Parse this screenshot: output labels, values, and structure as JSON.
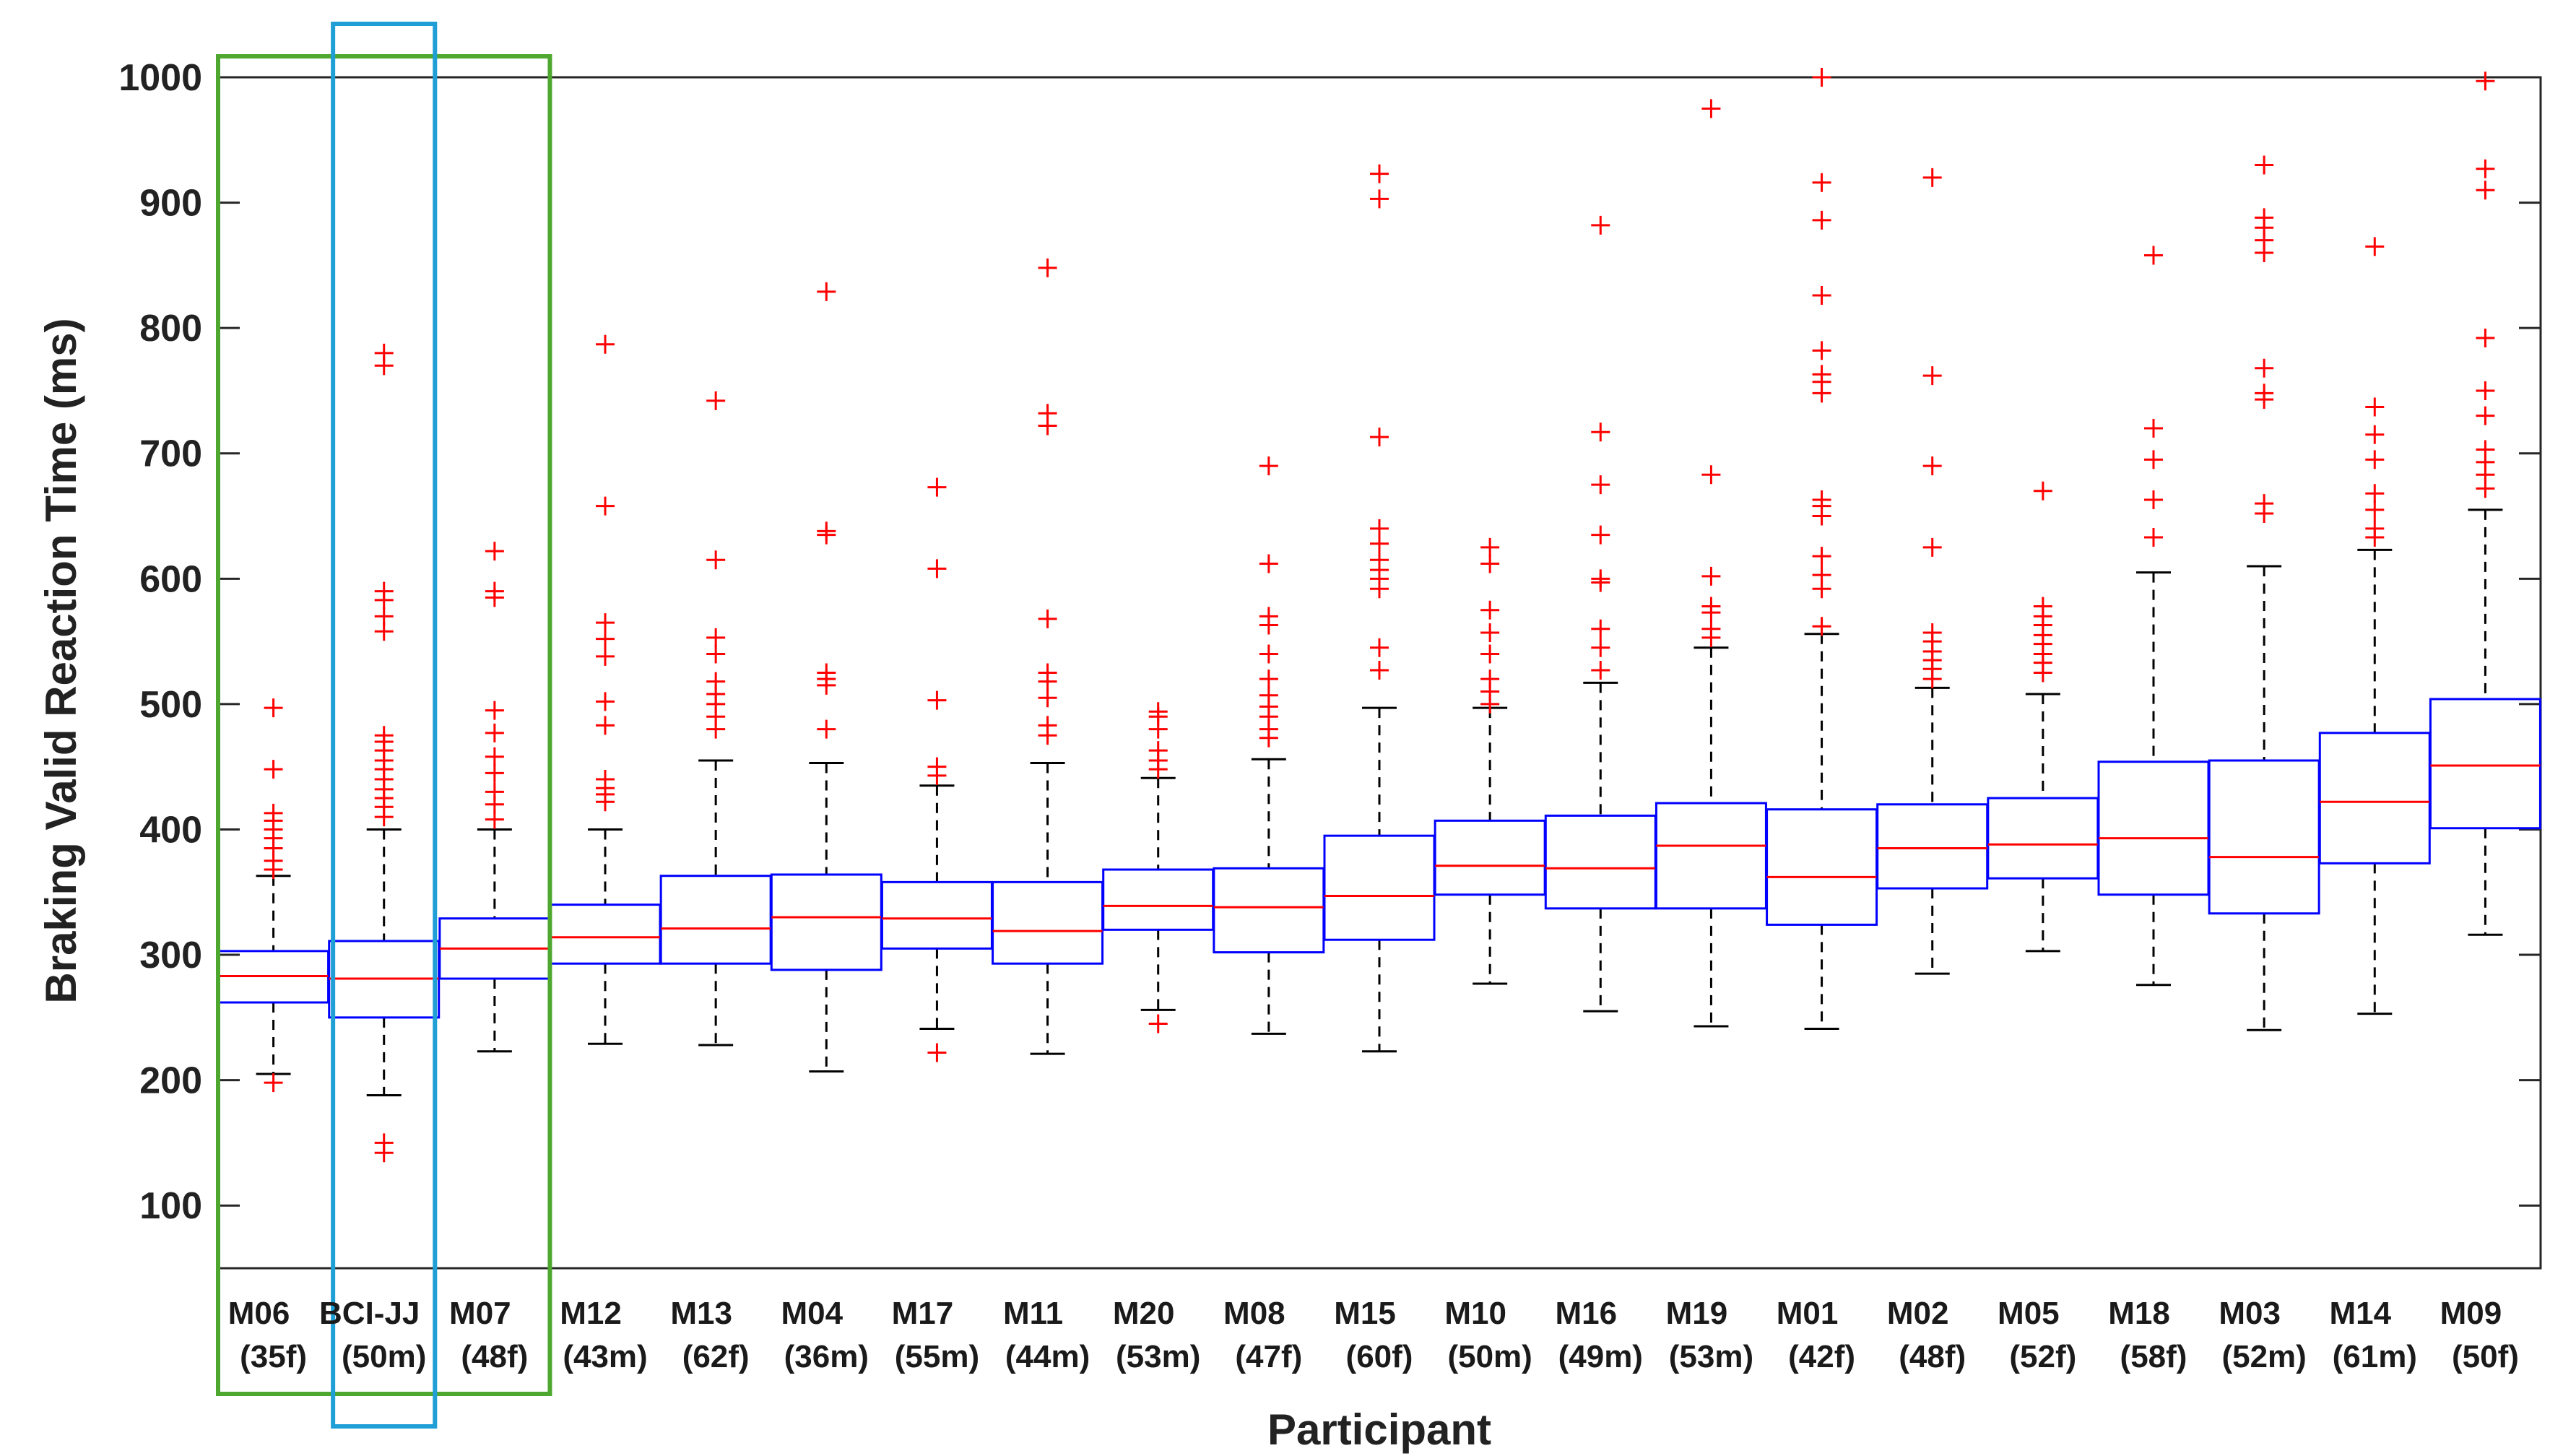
{
  "chart_data": {
    "type": "boxplot",
    "title": "",
    "xlabel": "Participant",
    "ylabel": "Braking Valid Reaction Time (ms)",
    "ylim": [
      50,
      1000
    ],
    "yticks": [
      100,
      200,
      300,
      400,
      500,
      600,
      700,
      800,
      900,
      1000
    ],
    "grid": false,
    "colors": {
      "box": "#0000ff",
      "median": "#ff0000",
      "whisker": "#000000",
      "outlier": "#ff0000",
      "highlight_green": "#4ea72e",
      "highlight_blue": "#1f9fd6"
    },
    "highlight_groups": [
      {
        "color": "green",
        "categories": [
          "M06",
          "M07"
        ]
      },
      {
        "color": "blue",
        "categories": [
          "BCI-JJ"
        ]
      }
    ],
    "categories": [
      {
        "name": "M06",
        "info": "(35f)",
        "whisker_low": 205,
        "q1": 262,
        "median": 283,
        "q3": 303,
        "whisker_high": 363,
        "outliers": [
          198,
          368,
          375,
          385,
          393,
          400,
          407,
          413,
          448,
          497
        ]
      },
      {
        "name": "BCI-JJ",
        "info": "(50m)",
        "whisker_low": 188,
        "q1": 250,
        "median": 281,
        "q3": 311,
        "whisker_high": 400,
        "outliers": [
          142,
          150,
          410,
          418,
          425,
          432,
          440,
          448,
          455,
          463,
          470,
          475,
          558,
          570,
          583,
          590,
          770,
          780
        ]
      },
      {
        "name": "M07",
        "info": "(48f)",
        "whisker_low": 223,
        "q1": 281,
        "median": 305,
        "q3": 329,
        "whisker_high": 400,
        "outliers": [
          408,
          420,
          430,
          445,
          458,
          477,
          495,
          585,
          590,
          622
        ]
      },
      {
        "name": "M12",
        "info": "(43m)",
        "whisker_low": 229,
        "q1": 293,
        "median": 314,
        "q3": 340,
        "whisker_high": 400,
        "outliers": [
          422,
          428,
          433,
          440,
          483,
          502,
          538,
          552,
          565,
          658,
          787
        ]
      },
      {
        "name": "M13",
        "info": "(62f)",
        "whisker_low": 228,
        "q1": 293,
        "median": 321,
        "q3": 363,
        "whisker_high": 455,
        "outliers": [
          480,
          490,
          500,
          508,
          518,
          540,
          553,
          615,
          742
        ]
      },
      {
        "name": "M04",
        "info": "(36m)",
        "whisker_low": 207,
        "q1": 288,
        "median": 330,
        "q3": 364,
        "whisker_high": 453,
        "outliers": [
          480,
          515,
          520,
          525,
          635,
          638,
          829
        ]
      },
      {
        "name": "M17",
        "info": "(55m)",
        "whisker_low": 241,
        "q1": 305,
        "median": 329,
        "q3": 358,
        "whisker_high": 435,
        "outliers": [
          222,
          443,
          450,
          503,
          608,
          673
        ]
      },
      {
        "name": "M11",
        "info": "(44m)",
        "whisker_low": 221,
        "q1": 293,
        "median": 319,
        "q3": 358,
        "whisker_high": 453,
        "outliers": [
          475,
          483,
          505,
          518,
          525,
          568,
          722,
          732,
          848
        ]
      },
      {
        "name": "M20",
        "info": "(53m)",
        "whisker_low": 256,
        "q1": 320,
        "median": 339,
        "q3": 368,
        "whisker_high": 441,
        "outliers": [
          245,
          448,
          455,
          463,
          480,
          490,
          494
        ]
      },
      {
        "name": "M08",
        "info": "(47f)",
        "whisker_low": 237,
        "q1": 302,
        "median": 338,
        "q3": 369,
        "whisker_high": 456,
        "outliers": [
          473,
          480,
          490,
          498,
          507,
          520,
          540,
          563,
          570,
          612,
          690
        ]
      },
      {
        "name": "M15",
        "info": "(60f)",
        "whisker_low": 223,
        "q1": 312,
        "median": 347,
        "q3": 395,
        "whisker_high": 497,
        "outliers": [
          527,
          545,
          592,
          600,
          607,
          615,
          628,
          640,
          713,
          903,
          923
        ]
      },
      {
        "name": "M10",
        "info": "(50m)",
        "whisker_low": 277,
        "q1": 348,
        "median": 371,
        "q3": 407,
        "whisker_high": 497,
        "outliers": [
          500,
          510,
          520,
          540,
          557,
          575,
          612,
          625
        ]
      },
      {
        "name": "M16",
        "info": "(49m)",
        "whisker_low": 255,
        "q1": 337,
        "median": 369,
        "q3": 411,
        "whisker_high": 517,
        "outliers": [
          527,
          545,
          560,
          597,
          600,
          635,
          675,
          717,
          882
        ]
      },
      {
        "name": "M19",
        "info": "(53m)",
        "whisker_low": 243,
        "q1": 337,
        "median": 387,
        "q3": 421,
        "whisker_high": 545,
        "outliers": [
          553,
          560,
          573,
          578,
          602,
          683,
          975
        ]
      },
      {
        "name": "M01",
        "info": "(42f)",
        "whisker_low": 241,
        "q1": 324,
        "median": 362,
        "q3": 416,
        "whisker_high": 556,
        "outliers": [
          562,
          592,
          603,
          618,
          650,
          658,
          663,
          748,
          757,
          763,
          782,
          826,
          886,
          916,
          1000
        ]
      },
      {
        "name": "M02",
        "info": "(48f)",
        "whisker_low": 285,
        "q1": 353,
        "median": 385,
        "q3": 420,
        "whisker_high": 513,
        "outliers": [
          520,
          528,
          535,
          542,
          550,
          557,
          625,
          690,
          762,
          920
        ]
      },
      {
        "name": "M05",
        "info": "(52f)",
        "whisker_low": 303,
        "q1": 361,
        "median": 388,
        "q3": 425,
        "whisker_high": 508,
        "outliers": [
          525,
          533,
          540,
          548,
          555,
          563,
          570,
          578,
          670
        ]
      },
      {
        "name": "M18",
        "info": "(58f)",
        "whisker_low": 276,
        "q1": 348,
        "median": 393,
        "q3": 454,
        "whisker_high": 605,
        "outliers": [
          633,
          663,
          695,
          720,
          858
        ]
      },
      {
        "name": "M03",
        "info": "(52m)",
        "whisker_low": 240,
        "q1": 333,
        "median": 378,
        "q3": 455,
        "whisker_high": 610,
        "outliers": [
          652,
          660,
          743,
          748,
          768,
          860,
          870,
          880,
          888,
          930
        ]
      },
      {
        "name": "M14",
        "info": "(61m)",
        "whisker_low": 253,
        "q1": 373,
        "median": 422,
        "q3": 477,
        "whisker_high": 623,
        "outliers": [
          633,
          640,
          655,
          668,
          695,
          715,
          737,
          865
        ]
      },
      {
        "name": "M09",
        "info": "(50f)",
        "whisker_low": 316,
        "q1": 401,
        "median": 451,
        "q3": 504,
        "whisker_high": 655,
        "outliers": [
          672,
          683,
          693,
          703,
          730,
          750,
          792,
          910,
          927,
          997
        ]
      }
    ]
  }
}
